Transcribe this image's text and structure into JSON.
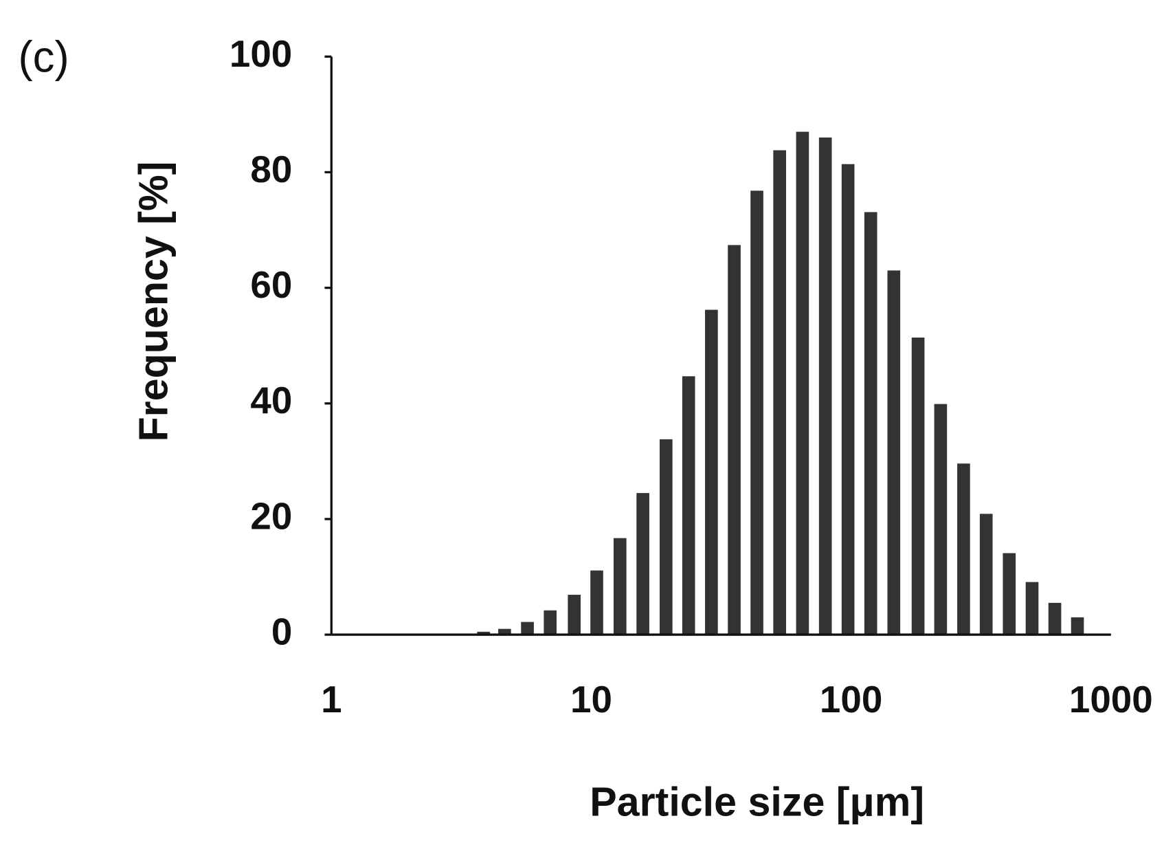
{
  "chart_data": {
    "type": "bar",
    "panel_label": "(c)",
    "x_label": "Particle size [μm]",
    "y_label": "Frequency [%]",
    "x": [
      3.85,
      4.64,
      5.68,
      6.95,
      8.6,
      10.5,
      12.9,
      15.8,
      19.4,
      23.7,
      29.0,
      35.5,
      43.4,
      53.1,
      65.0,
      79.6,
      97.3,
      119,
      146,
      181,
      221,
      271,
      331,
      406,
      497,
      608,
      743
    ],
    "values": [
      0.5,
      1.0,
      2.2,
      4.2,
      6.9,
      11.1,
      16.7,
      24.5,
      33.8,
      44.7,
      56.2,
      67.4,
      76.8,
      83.8,
      87.0,
      86.0,
      81.4,
      73.1,
      63.0,
      51.4,
      39.9,
      29.6,
      20.9,
      14.1,
      9.1,
      5.5,
      3.0
    ],
    "color": "#333333",
    "xlim": [
      1,
      1000
    ],
    "xscale": "log",
    "xticks": [
      1,
      10,
      100,
      1000
    ],
    "ylim": [
      0,
      100
    ],
    "yticks": [
      0,
      20,
      40,
      60,
      80,
      100
    ],
    "grid": false
  }
}
